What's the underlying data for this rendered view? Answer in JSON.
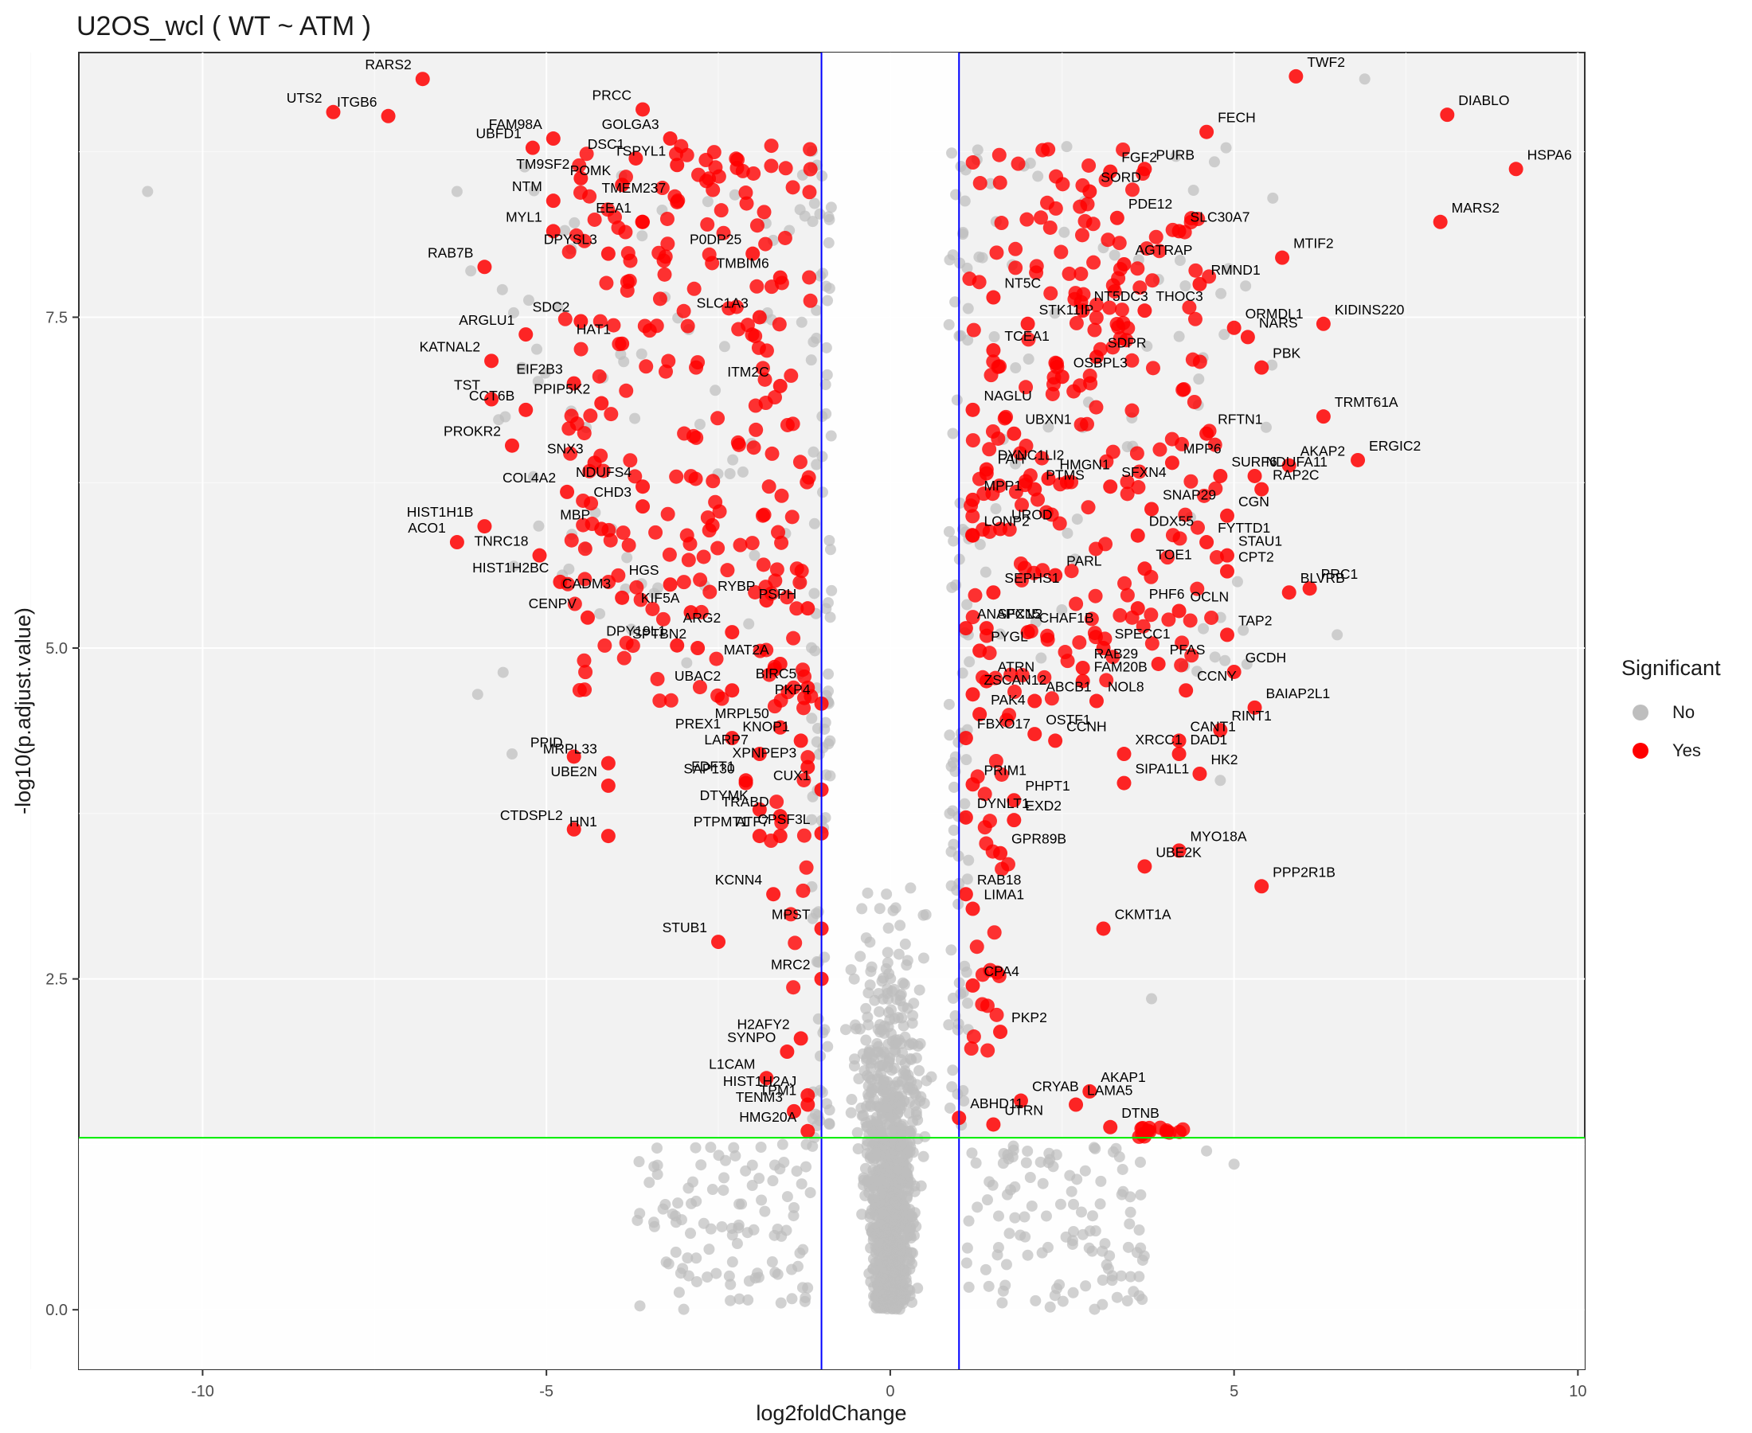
{
  "chart_data": {
    "type": "scatter",
    "title": "U2OS_wcl ( WT ~ ATM )",
    "xlabel": "log2foldChange",
    "ylabel": "-log10(p.adjust.value)",
    "xlim": [
      -11.8,
      10.1
    ],
    "ylim": [
      -0.45,
      9.5
    ],
    "x_ticks": [
      -10,
      -5,
      0,
      5,
      10
    ],
    "y_ticks": [
      0.0,
      2.5,
      5.0,
      7.5
    ],
    "x_tick_labels": [
      "-10",
      "-5",
      "0",
      "5",
      "10"
    ],
    "y_tick_labels": [
      "0.0",
      "2.5",
      "5.0",
      "7.5"
    ],
    "grid": true,
    "panel_background": "#f2f2f2",
    "thresholds": {
      "fold_change": [
        -1,
        1
      ],
      "fold_change_line_color": "#0000ff",
      "significance_y": 1.3,
      "significance_line_color": "#00ee00"
    },
    "legend": {
      "title": "Significant",
      "placement": "right",
      "entries": [
        {
          "label": "No",
          "color": "#bebebe"
        },
        {
          "label": "Yes",
          "color": "#ff0000"
        }
      ]
    },
    "series": [
      {
        "name": "No",
        "color": "#bebebe"
      },
      {
        "name": "Yes",
        "color": "#ff0000"
      }
    ],
    "labeled_points": [
      {
        "gene": "UTS2",
        "x": -8.1,
        "y": 9.05
      },
      {
        "gene": "RARS2",
        "x": -6.8,
        "y": 9.3
      },
      {
        "gene": "ITGB6",
        "x": -7.3,
        "y": 9.02
      },
      {
        "gene": "FAM98A",
        "x": -4.9,
        "y": 8.85
      },
      {
        "gene": "PRCC",
        "x": -3.6,
        "y": 9.07
      },
      {
        "gene": "GOLGA3",
        "x": -3.2,
        "y": 8.85
      },
      {
        "gene": "UBFD1",
        "x": -5.2,
        "y": 8.78
      },
      {
        "gene": "DSC1",
        "x": -3.7,
        "y": 8.7
      },
      {
        "gene": "TSPYL1",
        "x": -3.1,
        "y": 8.65
      },
      {
        "gene": "TM9SF2",
        "x": -4.5,
        "y": 8.55
      },
      {
        "gene": "POMK",
        "x": -3.9,
        "y": 8.5
      },
      {
        "gene": "TMEM237",
        "x": -3.1,
        "y": 8.37
      },
      {
        "gene": "NTM",
        "x": -4.9,
        "y": 8.38
      },
      {
        "gene": "EEA1",
        "x": -3.6,
        "y": 8.22
      },
      {
        "gene": "MYL1",
        "x": -4.9,
        "y": 8.15
      },
      {
        "gene": "DPYSL3",
        "x": -4.1,
        "y": 7.98
      },
      {
        "gene": "P0DP25",
        "x": -2.0,
        "y": 7.98
      },
      {
        "gene": "RAB7B",
        "x": -5.9,
        "y": 7.88
      },
      {
        "gene": "TMBIM6",
        "x": -1.6,
        "y": 7.8
      },
      {
        "gene": "SDC2",
        "x": -4.5,
        "y": 7.47
      },
      {
        "gene": "SLC1A3",
        "x": -1.9,
        "y": 7.5
      },
      {
        "gene": "ARGLU1",
        "x": -5.3,
        "y": 7.37
      },
      {
        "gene": "HAT1",
        "x": -3.9,
        "y": 7.3
      },
      {
        "gene": "KATNAL2",
        "x": -5.8,
        "y": 7.17
      },
      {
        "gene": "EIF2B3",
        "x": -4.6,
        "y": 7.0
      },
      {
        "gene": "ITM2C",
        "x": -1.6,
        "y": 6.98
      },
      {
        "gene": "TST",
        "x": -5.8,
        "y": 6.88
      },
      {
        "gene": "PPIP5K2",
        "x": -4.2,
        "y": 6.85
      },
      {
        "gene": "CCT6B",
        "x": -5.3,
        "y": 6.8
      },
      {
        "gene": "SNX3",
        "x": -4.3,
        "y": 6.4
      },
      {
        "gene": "PROKR2",
        "x": -5.5,
        "y": 6.53
      },
      {
        "gene": "NDUFS4",
        "x": -3.6,
        "y": 6.22
      },
      {
        "gene": "COL4A2",
        "x": -4.7,
        "y": 6.18
      },
      {
        "gene": "CHD3",
        "x": -3.6,
        "y": 6.07
      },
      {
        "gene": "MBP",
        "x": -4.2,
        "y": 5.9
      },
      {
        "gene": "HIST1H1B",
        "x": -5.9,
        "y": 5.92
      },
      {
        "gene": "TNRC18",
        "x": -5.1,
        "y": 5.7
      },
      {
        "gene": "ACO1",
        "x": -6.3,
        "y": 5.8
      },
      {
        "gene": "HIST1H2BC",
        "x": -4.8,
        "y": 5.5
      },
      {
        "gene": "HGS",
        "x": -3.2,
        "y": 5.48
      },
      {
        "gene": "CADM3",
        "x": -3.9,
        "y": 5.38
      },
      {
        "gene": "RYBP",
        "x": -1.8,
        "y": 5.36
      },
      {
        "gene": "CENPV",
        "x": -4.4,
        "y": 5.23
      },
      {
        "gene": "KIF5A",
        "x": -2.9,
        "y": 5.27
      },
      {
        "gene": "PSPH",
        "x": -1.2,
        "y": 5.3
      },
      {
        "gene": "ARG2",
        "x": -2.3,
        "y": 5.12
      },
      {
        "gene": "DPY19L1",
        "x": -3.1,
        "y": 5.02
      },
      {
        "gene": "SPTBN2",
        "x": -2.8,
        "y": 5.0
      },
      {
        "gene": "MAT2A",
        "x": -1.6,
        "y": 4.88
      },
      {
        "gene": "BIRC5",
        "x": -1.2,
        "y": 4.7
      },
      {
        "gene": "UBAC2",
        "x": -2.3,
        "y": 4.68
      },
      {
        "gene": "PKP4",
        "x": -1.0,
        "y": 4.58
      },
      {
        "gene": "MRPL50",
        "x": -1.6,
        "y": 4.4
      },
      {
        "gene": "PREX1",
        "x": -2.3,
        "y": 4.32
      },
      {
        "gene": "KNOP1",
        "x": -1.3,
        "y": 4.3
      },
      {
        "gene": "LARP7",
        "x": -1.9,
        "y": 4.2
      },
      {
        "gene": "PPID",
        "x": -4.6,
        "y": 4.18
      },
      {
        "gene": "MRPL33",
        "x": -4.1,
        "y": 4.13
      },
      {
        "gene": "XPNPEP3",
        "x": -1.2,
        "y": 4.1
      },
      {
        "gene": "FDFT1",
        "x": -2.1,
        "y": 4.0
      },
      {
        "gene": "SAP130",
        "x": -2.1,
        "y": 3.98
      },
      {
        "gene": "UBE2N",
        "x": -4.1,
        "y": 3.96
      },
      {
        "gene": "CUX1",
        "x": -1.0,
        "y": 3.93
      },
      {
        "gene": "TRABD",
        "x": -1.6,
        "y": 3.73
      },
      {
        "gene": "DTYMK",
        "x": -1.9,
        "y": 3.78
      },
      {
        "gene": "CTDSPL2",
        "x": -4.6,
        "y": 3.63
      },
      {
        "gene": "HN1",
        "x": -4.1,
        "y": 3.58
      },
      {
        "gene": "ATF7",
        "x": -1.6,
        "y": 3.58
      },
      {
        "gene": "CPSF3L",
        "x": -1.0,
        "y": 3.6
      },
      {
        "gene": "PTPMT1",
        "x": -1.9,
        "y": 3.58
      },
      {
        "gene": "KCNN4",
        "x": -1.7,
        "y": 3.14
      },
      {
        "gene": "MPST",
        "x": -1.0,
        "y": 2.88
      },
      {
        "gene": "STUB1",
        "x": -2.5,
        "y": 2.78
      },
      {
        "gene": "MRC2",
        "x": -1.0,
        "y": 2.5
      },
      {
        "gene": "H2AFY2",
        "x": -1.3,
        "y": 2.05
      },
      {
        "gene": "SYNPO",
        "x": -1.5,
        "y": 1.95
      },
      {
        "gene": "L1CAM",
        "x": -1.8,
        "y": 1.75
      },
      {
        "gene": "HIST1H2AJ",
        "x": -1.2,
        "y": 1.62
      },
      {
        "gene": "TENM3",
        "x": -1.4,
        "y": 1.5
      },
      {
        "gene": "TPM1",
        "x": -1.2,
        "y": 1.55
      },
      {
        "gene": "HMG20A",
        "x": -1.2,
        "y": 1.35
      },
      {
        "gene": "TWF2",
        "x": 5.9,
        "y": 9.32
      },
      {
        "gene": "DIABLO",
        "x": 8.1,
        "y": 9.03
      },
      {
        "gene": "FECH",
        "x": 4.6,
        "y": 8.9
      },
      {
        "gene": "HSPA6",
        "x": 9.1,
        "y": 8.62
      },
      {
        "gene": "FGF2",
        "x": 3.2,
        "y": 8.6
      },
      {
        "gene": "PURB",
        "x": 3.7,
        "y": 8.62
      },
      {
        "gene": "SORD",
        "x": 2.9,
        "y": 8.45
      },
      {
        "gene": "MARS2",
        "x": 8.0,
        "y": 8.22
      },
      {
        "gene": "PDE12",
        "x": 3.3,
        "y": 8.25
      },
      {
        "gene": "SLC30A7",
        "x": 4.2,
        "y": 8.15
      },
      {
        "gene": "MTIF2",
        "x": 5.7,
        "y": 7.95
      },
      {
        "gene": "AGTRAP",
        "x": 3.4,
        "y": 7.9
      },
      {
        "gene": "RMND1",
        "x": 4.5,
        "y": 7.75
      },
      {
        "gene": "NT5C",
        "x": 1.5,
        "y": 7.65
      },
      {
        "gene": "NT5DC3",
        "x": 2.8,
        "y": 7.55
      },
      {
        "gene": "THOC3",
        "x": 3.7,
        "y": 7.55
      },
      {
        "gene": "STK11IP",
        "x": 2.0,
        "y": 7.45
      },
      {
        "gene": "ORMDL1",
        "x": 5.0,
        "y": 7.42
      },
      {
        "gene": "KIDINS220",
        "x": 6.3,
        "y": 7.45
      },
      {
        "gene": "SDPR",
        "x": 3.0,
        "y": 7.2
      },
      {
        "gene": "NARS",
        "x": 5.2,
        "y": 7.35
      },
      {
        "gene": "TCEA1",
        "x": 1.5,
        "y": 7.25
      },
      {
        "gene": "OSBPL3",
        "x": 2.5,
        "y": 7.05
      },
      {
        "gene": "PBK",
        "x": 5.4,
        "y": 7.12
      },
      {
        "gene": "NAGLU",
        "x": 1.2,
        "y": 6.8
      },
      {
        "gene": "UBXN1",
        "x": 1.8,
        "y": 6.62
      },
      {
        "gene": "RFTN1",
        "x": 4.6,
        "y": 6.62
      },
      {
        "gene": "TRMT61A",
        "x": 6.3,
        "y": 6.75
      },
      {
        "gene": "MPP6",
        "x": 4.1,
        "y": 6.4
      },
      {
        "gene": "NDUFA11",
        "x": 5.3,
        "y": 6.3
      },
      {
        "gene": "AKAP2",
        "x": 5.8,
        "y": 6.38
      },
      {
        "gene": "DYNC1LI2",
        "x": 1.4,
        "y": 6.35
      },
      {
        "gene": "FAH",
        "x": 1.4,
        "y": 6.32
      },
      {
        "gene": "HMGN1",
        "x": 2.3,
        "y": 6.28
      },
      {
        "gene": "SFXN4",
        "x": 3.2,
        "y": 6.22
      },
      {
        "gene": "SURF6",
        "x": 4.8,
        "y": 6.3
      },
      {
        "gene": "ERGIC2",
        "x": 6.8,
        "y": 6.42
      },
      {
        "gene": "RAP2C",
        "x": 5.4,
        "y": 6.2
      },
      {
        "gene": "MPP1",
        "x": 1.2,
        "y": 6.12
      },
      {
        "gene": "PTMS",
        "x": 2.1,
        "y": 6.2
      },
      {
        "gene": "SNAP29",
        "x": 3.8,
        "y": 6.05
      },
      {
        "gene": "CGN",
        "x": 4.9,
        "y": 6.0
      },
      {
        "gene": "LONP2",
        "x": 1.2,
        "y": 5.85
      },
      {
        "gene": "UROD",
        "x": 1.6,
        "y": 5.9
      },
      {
        "gene": "DDX55",
        "x": 3.6,
        "y": 5.85
      },
      {
        "gene": "FYTTD1",
        "x": 4.6,
        "y": 5.8
      },
      {
        "gene": "STAU1",
        "x": 4.9,
        "y": 5.7
      },
      {
        "gene": "PARL",
        "x": 2.4,
        "y": 5.55
      },
      {
        "gene": "TOE1",
        "x": 3.7,
        "y": 5.6
      },
      {
        "gene": "CPT2",
        "x": 4.9,
        "y": 5.58
      },
      {
        "gene": "PRC1",
        "x": 6.1,
        "y": 5.45
      },
      {
        "gene": "SEPHS1",
        "x": 1.5,
        "y": 5.42
      },
      {
        "gene": "PHF6",
        "x": 3.6,
        "y": 5.3
      },
      {
        "gene": "OCLN",
        "x": 4.2,
        "y": 5.28
      },
      {
        "gene": "BLVRB",
        "x": 5.8,
        "y": 5.42
      },
      {
        "gene": "ANAPC15",
        "x": 1.1,
        "y": 5.15
      },
      {
        "gene": "SFXN2",
        "x": 1.4,
        "y": 5.15
      },
      {
        "gene": "CHAF1B",
        "x": 2.0,
        "y": 5.12
      },
      {
        "gene": "SPECC1",
        "x": 3.1,
        "y": 5.0
      },
      {
        "gene": "TAP2",
        "x": 4.9,
        "y": 5.1
      },
      {
        "gene": "PYGL",
        "x": 1.3,
        "y": 4.98
      },
      {
        "gene": "RAB29",
        "x": 2.8,
        "y": 4.85
      },
      {
        "gene": "PFAS",
        "x": 3.9,
        "y": 4.88
      },
      {
        "gene": "GCDH",
        "x": 5.0,
        "y": 4.82
      },
      {
        "gene": "ZSCAN12",
        "x": 1.2,
        "y": 4.65
      },
      {
        "gene": "ATRN",
        "x": 1.4,
        "y": 4.75
      },
      {
        "gene": "FAM20B",
        "x": 2.8,
        "y": 4.75
      },
      {
        "gene": "CCNY",
        "x": 4.3,
        "y": 4.68
      },
      {
        "gene": "PAK4",
        "x": 1.3,
        "y": 4.5
      },
      {
        "gene": "ABCB1",
        "x": 2.1,
        "y": 4.6
      },
      {
        "gene": "NOL8",
        "x": 3.0,
        "y": 4.6
      },
      {
        "gene": "BAIAP2L1",
        "x": 5.3,
        "y": 4.55
      },
      {
        "gene": "CANT1",
        "x": 4.2,
        "y": 4.3
      },
      {
        "gene": "FBXO17",
        "x": 1.1,
        "y": 4.32
      },
      {
        "gene": "OSTF1",
        "x": 2.1,
        "y": 4.35
      },
      {
        "gene": "CCNH",
        "x": 2.4,
        "y": 4.3
      },
      {
        "gene": "RINT1",
        "x": 4.8,
        "y": 4.38
      },
      {
        "gene": "DAD1",
        "x": 4.2,
        "y": 4.2
      },
      {
        "gene": "XRCC1",
        "x": 3.4,
        "y": 4.2
      },
      {
        "gene": "PRIM1",
        "x": 1.2,
        "y": 3.97
      },
      {
        "gene": "PHPT1",
        "x": 1.8,
        "y": 3.85
      },
      {
        "gene": "HK2",
        "x": 4.5,
        "y": 4.05
      },
      {
        "gene": "SIPA1L1",
        "x": 3.4,
        "y": 3.98
      },
      {
        "gene": "DYNLT1",
        "x": 1.1,
        "y": 3.72
      },
      {
        "gene": "EXD2",
        "x": 1.8,
        "y": 3.7
      },
      {
        "gene": "MYO18A",
        "x": 4.2,
        "y": 3.47
      },
      {
        "gene": "GPR89B",
        "x": 1.6,
        "y": 3.45
      },
      {
        "gene": "RAB18",
        "x": 1.1,
        "y": 3.14
      },
      {
        "gene": "UBE2K",
        "x": 3.7,
        "y": 3.35
      },
      {
        "gene": "PPP2R1B",
        "x": 5.4,
        "y": 3.2
      },
      {
        "gene": "LIMA1",
        "x": 1.2,
        "y": 3.03
      },
      {
        "gene": "CKMT1A",
        "x": 3.1,
        "y": 2.88
      },
      {
        "gene": "CPA4",
        "x": 1.2,
        "y": 2.45
      },
      {
        "gene": "PKP2",
        "x": 1.6,
        "y": 2.1
      },
      {
        "gene": "AKAP1",
        "x": 2.9,
        "y": 1.65
      },
      {
        "gene": "CRYAB",
        "x": 1.9,
        "y": 1.58
      },
      {
        "gene": "ABHD11",
        "x": 1.0,
        "y": 1.45
      },
      {
        "gene": "DTNB",
        "x": 3.2,
        "y": 1.38
      },
      {
        "gene": "LAMA5",
        "x": 2.7,
        "y": 1.55
      },
      {
        "gene": "UTRN",
        "x": 1.5,
        "y": 1.4
      }
    ]
  }
}
